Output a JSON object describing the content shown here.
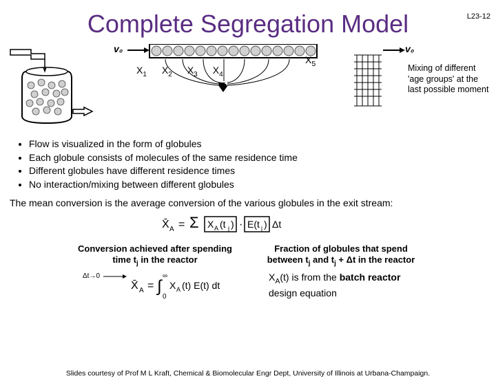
{
  "page_number": "L23-12",
  "title": "Complete Segregation Model",
  "caption_right": "Mixing of different 'age groups' at the last possible moment",
  "x_labels": {
    "x1": "X",
    "s1": "1",
    "x2": "X",
    "s2": "2",
    "x3": "X",
    "s3": "3",
    "x4": "X",
    "s4": "4",
    "x5": "X",
    "s5": "5"
  },
  "bullets": [
    "Flow is visualized in the form of globules",
    "Each globule consists of molecules of the same residence time",
    "Different globules have different residence times",
    "No interaction/mixing between different globules"
  ],
  "mean_line": "The mean conversion is the average conversion of the various globules in the exit stream:",
  "col_left": "Conversion achieved after spending time t<sub>j</sub> in the reactor",
  "col_right": "Fraction of globules that spend between t<sub>j</sub> and t<sub>j</sub> + Δt in the reactor",
  "eq2_caption_pre": "X",
  "eq2_caption_sub": "A",
  "eq2_caption_post": "(t) is from the ",
  "eq2_bold": "batch reactor",
  "eq2_caption_end": " design equation",
  "credit": "Slides courtesy of Prof M L Kraft, Chemical & Biomolecular Engr Dept, University of Illinois at Urbana-Champaign.",
  "v0": "v₀",
  "colors": {
    "title": "#5a2d82",
    "text": "#000000",
    "bg": "#ffffff",
    "globule_fill": "#cfcfd0",
    "globule_stroke": "#4a4a4a",
    "pipe_stroke": "#000000"
  }
}
